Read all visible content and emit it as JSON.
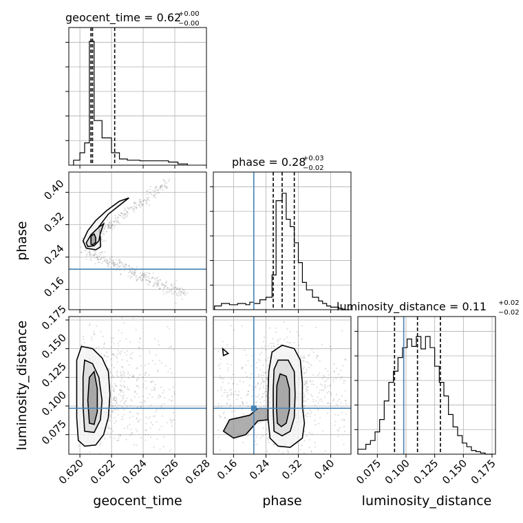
{
  "chart_data": {
    "type": "corner",
    "params": [
      "geocent_time",
      "phase",
      "luminosity_distance"
    ],
    "axis_labels": [
      "geocent_time",
      "phase",
      "luminosity_distance"
    ],
    "truth_color": "#4682b4",
    "truths": {
      "phase": 0.21,
      "luminosity_distance": 0.098
    },
    "ranges": {
      "geocent_time": [
        0.6193,
        0.628
      ],
      "phase": [
        0.11,
        0.45
      ],
      "luminosity_distance": [
        0.058,
        0.178
      ]
    },
    "ticks": {
      "geocent_time": [
        0.62,
        0.622,
        0.624,
        0.626,
        0.628
      ],
      "phase": [
        0.16,
        0.24,
        0.32,
        0.4
      ],
      "luminosity_distance": [
        0.075,
        0.1,
        0.125,
        0.15,
        0.175
      ]
    },
    "tick_labels": {
      "geocent_time": [
        "0.620",
        "0.622",
        "0.624",
        "0.626",
        "0.628"
      ],
      "phase": [
        "0.16",
        "0.24",
        "0.32",
        "0.40"
      ],
      "luminosity_distance": [
        "0.075",
        "0.100",
        "0.125",
        "0.150",
        "0.175"
      ]
    },
    "diag_titles": [
      {
        "prefix": "geocent_time = 0.62",
        "plus": "+0.00",
        "minus": "−0.00"
      },
      {
        "prefix": "phase = 0.28",
        "plus": "+0.03",
        "minus": "−0.02"
      },
      {
        "prefix": "luminosity_distance = 0.11",
        "plus": "+0.02",
        "minus": "−0.02"
      }
    ],
    "quantiles": {
      "geocent_time": [
        0.6207,
        0.6208,
        0.6222
      ],
      "phase": [
        0.258,
        0.28,
        0.31
      ],
      "luminosity_distance": [
        0.09,
        0.11,
        0.13
      ]
    },
    "hist_geocent_time": {
      "edges": [
        0.6196,
        0.62,
        0.6203,
        0.6206,
        0.6209,
        0.6214,
        0.622,
        0.6225,
        0.623,
        0.6238,
        0.6247,
        0.6256,
        0.6262,
        0.6268
      ],
      "counts": [
        0.04,
        0.1,
        0.18,
        1.0,
        0.36,
        0.22,
        0.1,
        0.05,
        0.04,
        0.035,
        0.035,
        0.025,
        0.01
      ]
    },
    "hist_phase": {
      "edges": [
        0.113,
        0.13,
        0.15,
        0.17,
        0.19,
        0.2,
        0.21,
        0.225,
        0.24,
        0.255,
        0.265,
        0.28,
        0.29,
        0.3,
        0.31,
        0.32,
        0.33,
        0.34,
        0.355,
        0.37,
        0.38,
        0.39,
        0.4,
        0.41,
        0.42,
        0.43,
        0.445
      ],
      "counts": [
        0.03,
        0.05,
        0.04,
        0.05,
        0.04,
        0.06,
        0.05,
        0.08,
        0.1,
        0.28,
        0.88,
        0.94,
        0.73,
        0.67,
        0.54,
        0.38,
        0.22,
        0.16,
        0.1,
        0.07,
        0.05,
        0.03,
        0.02,
        0.02,
        0.01,
        0.0
      ]
    },
    "hist_luminosity_distance": {
      "edges": [
        0.058,
        0.065,
        0.069,
        0.073,
        0.077,
        0.081,
        0.085,
        0.089,
        0.093,
        0.097,
        0.101,
        0.105,
        0.109,
        0.113,
        0.117,
        0.121,
        0.125,
        0.129,
        0.133,
        0.137,
        0.141,
        0.145,
        0.149,
        0.153,
        0.157,
        0.161,
        0.165,
        0.169,
        0.176
      ],
      "counts": [
        0.04,
        0.08,
        0.11,
        0.18,
        0.28,
        0.43,
        0.58,
        0.67,
        0.78,
        0.86,
        0.93,
        0.87,
        0.95,
        0.85,
        0.95,
        0.86,
        0.71,
        0.58,
        0.47,
        0.32,
        0.22,
        0.15,
        0.09,
        0.06,
        0.03,
        0.02,
        0.01,
        0.0
      ]
    },
    "contours": {
      "phase_vs_geocent_time": [
        [
          [
            0.6202,
            0.28
          ],
          [
            0.6205,
            0.305
          ],
          [
            0.621,
            0.33
          ],
          [
            0.6217,
            0.355
          ],
          [
            0.6225,
            0.378
          ],
          [
            0.6231,
            0.386
          ],
          [
            0.6228,
            0.377
          ],
          [
            0.6218,
            0.346
          ],
          [
            0.6212,
            0.315
          ],
          [
            0.6213,
            0.286
          ],
          [
            0.6213,
            0.265
          ],
          [
            0.621,
            0.258
          ],
          [
            0.6204,
            0.262
          ]
        ],
        [
          [
            0.6204,
            0.275
          ],
          [
            0.6207,
            0.295
          ],
          [
            0.6212,
            0.314
          ],
          [
            0.6215,
            0.322
          ],
          [
            0.6213,
            0.3
          ],
          [
            0.6212,
            0.28
          ],
          [
            0.6209,
            0.268
          ],
          [
            0.6205,
            0.266
          ]
        ],
        [
          [
            0.6207,
            0.272
          ],
          [
            0.6207,
            0.292
          ],
          [
            0.6209,
            0.297
          ],
          [
            0.621,
            0.288
          ],
          [
            0.621,
            0.276
          ],
          [
            0.6208,
            0.27
          ]
        ]
      ],
      "luminosity_distance_vs_geocent_time": [
        [
          [
            0.6199,
            0.07
          ],
          [
            0.6198,
            0.09
          ],
          [
            0.6198,
            0.115
          ],
          [
            0.6198,
            0.14
          ],
          [
            0.6201,
            0.152
          ],
          [
            0.6208,
            0.15
          ],
          [
            0.6214,
            0.142
          ],
          [
            0.6218,
            0.13
          ],
          [
            0.6219,
            0.11
          ],
          [
            0.6218,
            0.09
          ],
          [
            0.6215,
            0.075
          ],
          [
            0.621,
            0.066
          ],
          [
            0.6203,
            0.065
          ]
        ],
        [
          [
            0.6203,
            0.078
          ],
          [
            0.6202,
            0.1
          ],
          [
            0.6202,
            0.125
          ],
          [
            0.6203,
            0.14
          ],
          [
            0.6208,
            0.137
          ],
          [
            0.6212,
            0.125
          ],
          [
            0.6214,
            0.105
          ],
          [
            0.6213,
            0.088
          ],
          [
            0.6209,
            0.077
          ]
        ],
        [
          [
            0.6206,
            0.085
          ],
          [
            0.6205,
            0.105
          ],
          [
            0.6206,
            0.125
          ],
          [
            0.6209,
            0.13
          ],
          [
            0.6211,
            0.115
          ],
          [
            0.6211,
            0.095
          ],
          [
            0.6209,
            0.084
          ]
        ]
      ],
      "luminosity_distance_vs_phase": [
        [
          [
            0.25,
            0.072
          ],
          [
            0.245,
            0.09
          ],
          [
            0.245,
            0.11
          ],
          [
            0.247,
            0.13
          ],
          [
            0.255,
            0.147
          ],
          [
            0.28,
            0.153
          ],
          [
            0.31,
            0.15
          ],
          [
            0.325,
            0.14
          ],
          [
            0.33,
            0.12
          ],
          [
            0.33,
            0.1
          ],
          [
            0.335,
            0.085
          ],
          [
            0.33,
            0.072
          ],
          [
            0.3,
            0.064
          ],
          [
            0.27,
            0.065
          ]
        ],
        [
          [
            0.26,
            0.078
          ],
          [
            0.258,
            0.095
          ],
          [
            0.258,
            0.115
          ],
          [
            0.26,
            0.132
          ],
          [
            0.27,
            0.14
          ],
          [
            0.295,
            0.14
          ],
          [
            0.31,
            0.13
          ],
          [
            0.312,
            0.11
          ],
          [
            0.31,
            0.09
          ],
          [
            0.3,
            0.078
          ],
          [
            0.28,
            0.074
          ]
        ],
        [
          [
            0.268,
            0.085
          ],
          [
            0.266,
            0.1
          ],
          [
            0.267,
            0.118
          ],
          [
            0.275,
            0.128
          ],
          [
            0.29,
            0.126
          ],
          [
            0.298,
            0.115
          ],
          [
            0.298,
            0.097
          ],
          [
            0.29,
            0.085
          ],
          [
            0.278,
            0.082
          ]
        ],
        [
          [
            0.135,
            0.078
          ],
          [
            0.15,
            0.088
          ],
          [
            0.175,
            0.09
          ],
          [
            0.2,
            0.092
          ],
          [
            0.22,
            0.098
          ],
          [
            0.245,
            0.098
          ],
          [
            0.245,
            0.088
          ],
          [
            0.22,
            0.087
          ],
          [
            0.19,
            0.075
          ],
          [
            0.16,
            0.072
          ]
        ]
      ]
    }
  }
}
